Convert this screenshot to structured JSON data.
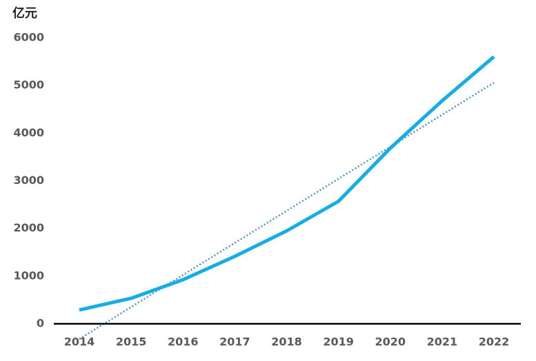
{
  "chart_data": {
    "type": "line",
    "ylabel": "亿元",
    "categories": [
      "2014",
      "2015",
      "2016",
      "2017",
      "2018",
      "2019",
      "2020",
      "2021",
      "2022"
    ],
    "series": [
      {
        "color": "#14ade8",
        "values": [
          290,
          535,
          925,
          1415,
          1950,
          2570,
          3685,
          4680,
          5605
        ]
      }
    ],
    "trendline": {
      "color": "#4a90c8",
      "style": "dotted",
      "values": [
        -320,
        352.5,
        1025,
        1697.5,
        2370,
        3042.5,
        3715,
        4387.5,
        5060
      ]
    },
    "ylim": [
      0,
      6000
    ],
    "yticks": [
      0,
      1000,
      2000,
      3000,
      4000,
      5000,
      6000
    ],
    "grid": false
  }
}
